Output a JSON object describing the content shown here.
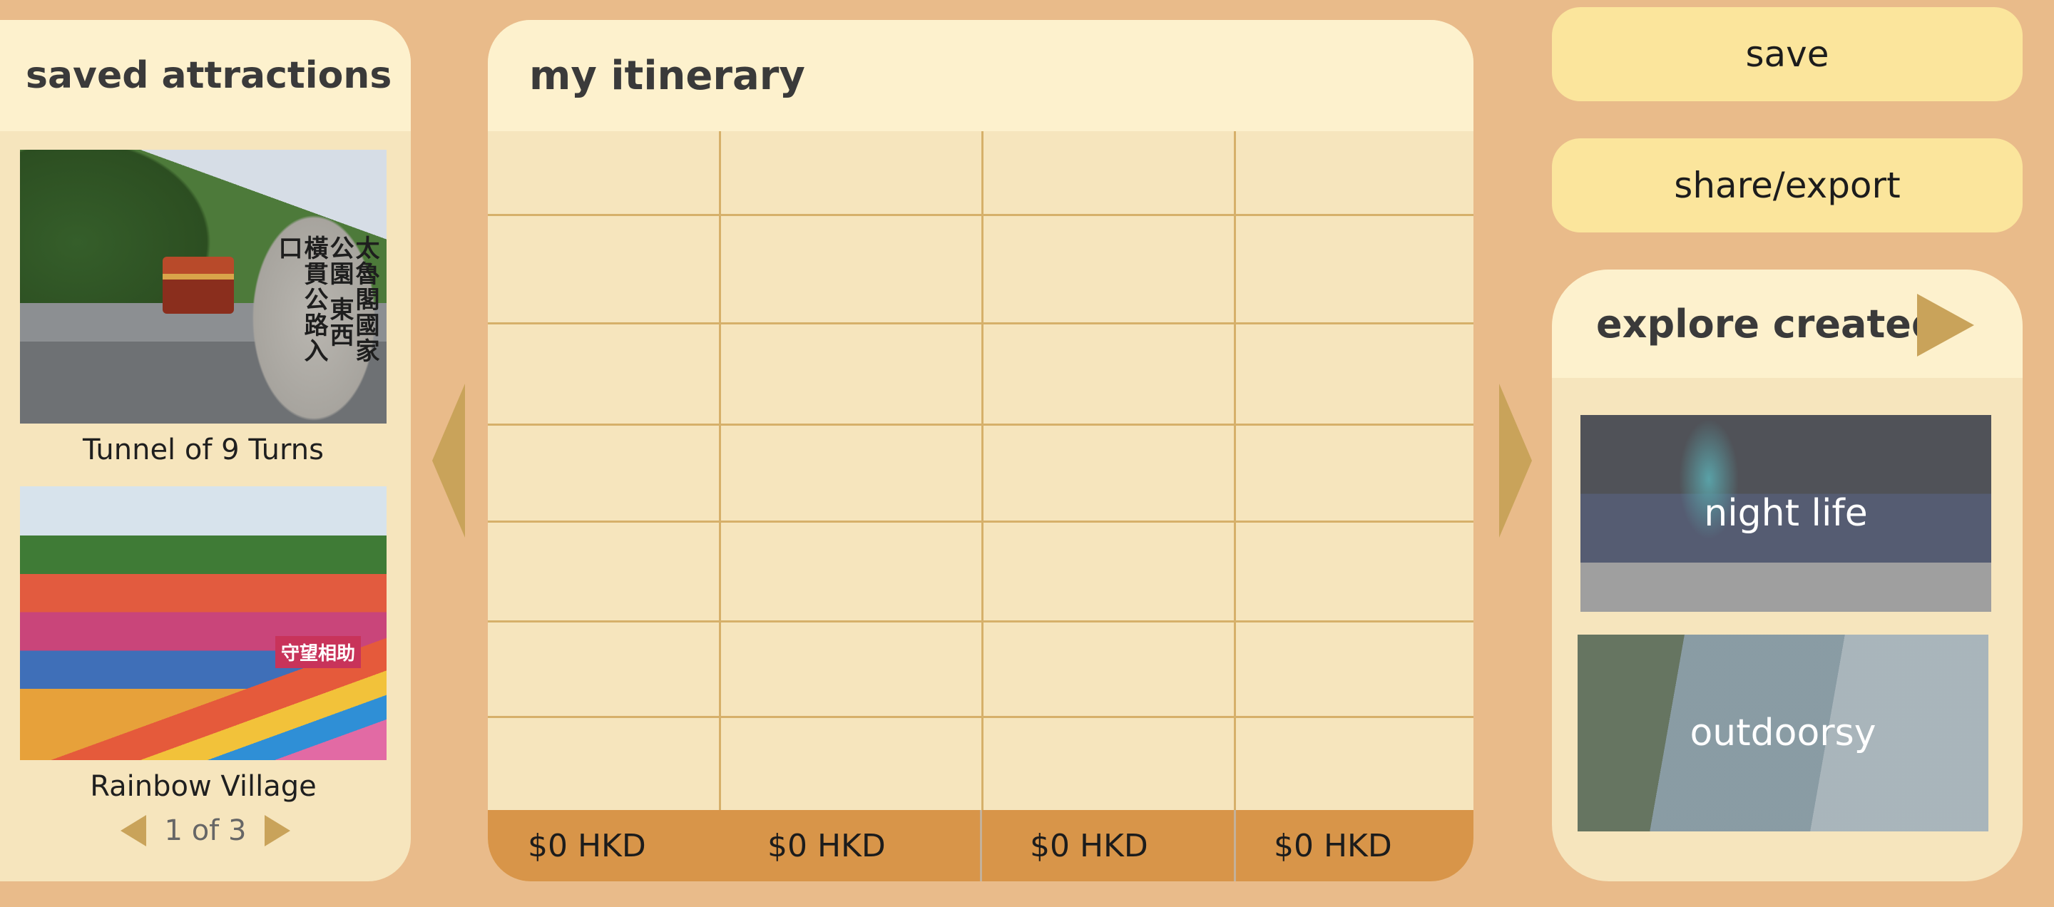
{
  "saved": {
    "title": "saved attractions",
    "attractions": [
      {
        "name": "Tunnel of 9 Turns",
        "photo_sign_text": "太魯閣國家公園 東西橫貫公路入口"
      },
      {
        "name": "Rainbow Village",
        "photo_sign_text": "守望相助"
      }
    ],
    "pager": {
      "label": "1 of 3"
    }
  },
  "itinerary": {
    "title": "my itinerary",
    "costs": [
      "$0 HKD",
      "$0 HKD",
      "$0 HKD",
      "$0 HKD"
    ]
  },
  "actions": {
    "save_label": "save",
    "share_label": "share/export"
  },
  "explore": {
    "title": "explore created",
    "tiles": [
      {
        "label": "night life"
      },
      {
        "label": "outdoorsy"
      }
    ]
  },
  "colors": {
    "background": "#e9bb8a",
    "panel": "#f6e5bd",
    "panel_header": "#fdf1cd",
    "button": "#fbe59c",
    "accent_arrow": "#c9a35a",
    "cost_bar": "#d89549"
  }
}
